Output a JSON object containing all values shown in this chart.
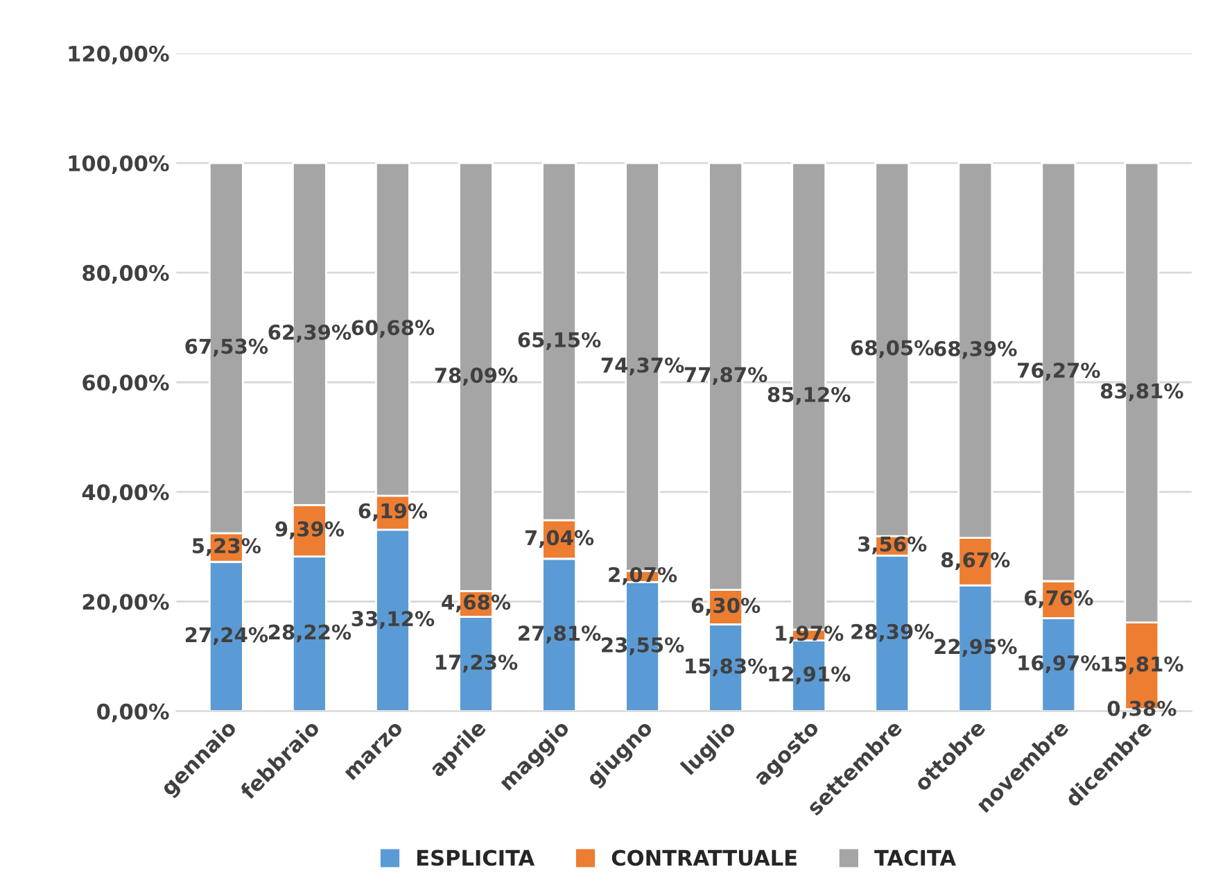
{
  "chart_data": {
    "type": "bar",
    "stacked": true,
    "categories": [
      "gennaio",
      "febbraio",
      "marzo",
      "aprile",
      "maggio",
      "giugno",
      "luglio",
      "agosto",
      "settembre",
      "ottobre",
      "novembre",
      "dicembre"
    ],
    "series": [
      {
        "name": "ESPLICITA",
        "color": "#5b9bd5",
        "values": [
          27.24,
          28.22,
          33.12,
          17.23,
          27.81,
          23.55,
          15.83,
          12.91,
          28.39,
          22.95,
          16.97,
          0.38
        ],
        "value_labels": [
          "27,24%",
          "28,22%",
          "33,12%",
          "17,23%",
          "27,81%",
          "23,55%",
          "15,83%",
          "12,91%",
          "28,39%",
          "22,95%",
          "16,97%",
          "0,38%"
        ]
      },
      {
        "name": "CONTRATTUALE",
        "color": "#ed7d31",
        "values": [
          5.23,
          9.39,
          6.19,
          4.68,
          7.04,
          2.07,
          6.3,
          1.97,
          3.56,
          8.67,
          6.76,
          15.81
        ],
        "value_labels": [
          "5,23%",
          "9,39%",
          "6,19%",
          "4,68%",
          "7,04%",
          "2,07%",
          "6,30%",
          "1,97%",
          "3,56%",
          "8,67%",
          "6,76%",
          "15,81%"
        ]
      },
      {
        "name": "TACITA",
        "color": "#a5a5a5",
        "values": [
          67.53,
          62.39,
          60.68,
          78.09,
          65.15,
          74.37,
          77.87,
          85.12,
          68.05,
          68.39,
          76.27,
          83.81
        ],
        "value_labels": [
          "67,53%",
          "62,39%",
          "60,68%",
          "78,09%",
          "65,15%",
          "74,37%",
          "77,87%",
          "85,12%",
          "68,05%",
          "68,39%",
          "76,27%",
          "83,81%"
        ]
      }
    ],
    "ylim": [
      0,
      120
    ],
    "yticks": [
      {
        "value": 0,
        "label": "0,00%"
      },
      {
        "value": 20,
        "label": "20,00%"
      },
      {
        "value": 40,
        "label": "40,00%"
      },
      {
        "value": 60,
        "label": "60,00%"
      },
      {
        "value": 80,
        "label": "80,00%"
      },
      {
        "value": 100,
        "label": "100,00%"
      },
      {
        "value": 120,
        "label": "120,00%"
      }
    ],
    "grid": "y",
    "legend": "bottom"
  }
}
